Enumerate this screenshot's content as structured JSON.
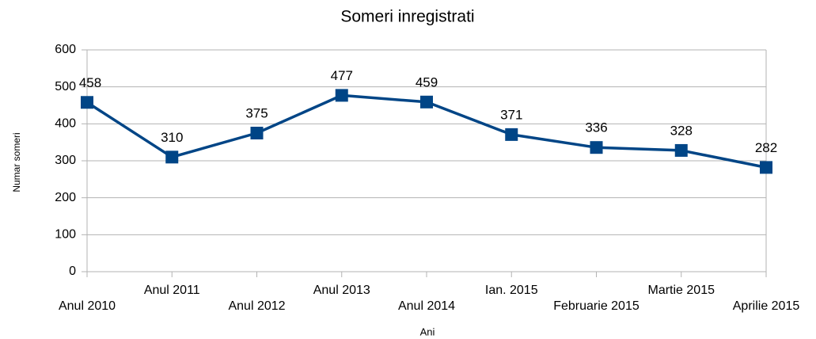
{
  "chart_data": {
    "type": "line",
    "title": "Someri inregistrati",
    "x_label": "Ani",
    "y_label": "Numar someri",
    "categories": [
      "Anul 2010",
      "Anul 2011",
      "Anul 2012",
      "Anul 2013",
      "Anul 2014",
      "Ian. 2015",
      "Februarie 2015",
      "Martie 2015",
      "Aprilie 2015"
    ],
    "series": [
      {
        "name": "Numar someri",
        "color": "#004586",
        "values": [
          458,
          310,
          375,
          477,
          459,
          371,
          336,
          328,
          282
        ]
      }
    ],
    "ylim": [
      0,
      600
    ],
    "yticks": [
      0,
      100,
      200,
      300,
      400,
      500,
      600
    ],
    "grid": true
  }
}
